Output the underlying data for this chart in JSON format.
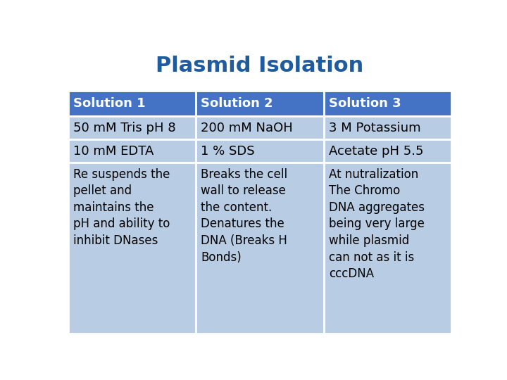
{
  "title": "Plasmid Isolation",
  "title_color": "#1F5C9E",
  "title_fontsize": 22,
  "title_fontweight": "bold",
  "header_bg_color": "#4472C4",
  "header_text_color": "#FFFFFF",
  "row_bg_color": "#B8CCE4",
  "border_color": "#FFFFFF",
  "text_color": "#000000",
  "columns": [
    "Solution 1",
    "Solution 2",
    "Solution 3"
  ],
  "rows": [
    [
      "50 mM Tris pH 8",
      "200 mM NaOH",
      "3 M Potassium"
    ],
    [
      "10 mM EDTA",
      "1 % SDS",
      "Acetate pH 5.5"
    ],
    [
      "Re suspends the\npellet and\nmaintains the\npH and ability to\ninhibit DNases",
      "Breaks the cell\nwall to release\nthe content.\nDenatures the\nDNA (Breaks H\nBonds)",
      "At nutralization\nThe Chromo\nDNA aggregates\nbeing very large\nwhile plasmid\ncan not as it is\ncccDNA"
    ]
  ],
  "fig_width": 7.2,
  "fig_height": 5.4,
  "bg_color": "#FFFFFF"
}
